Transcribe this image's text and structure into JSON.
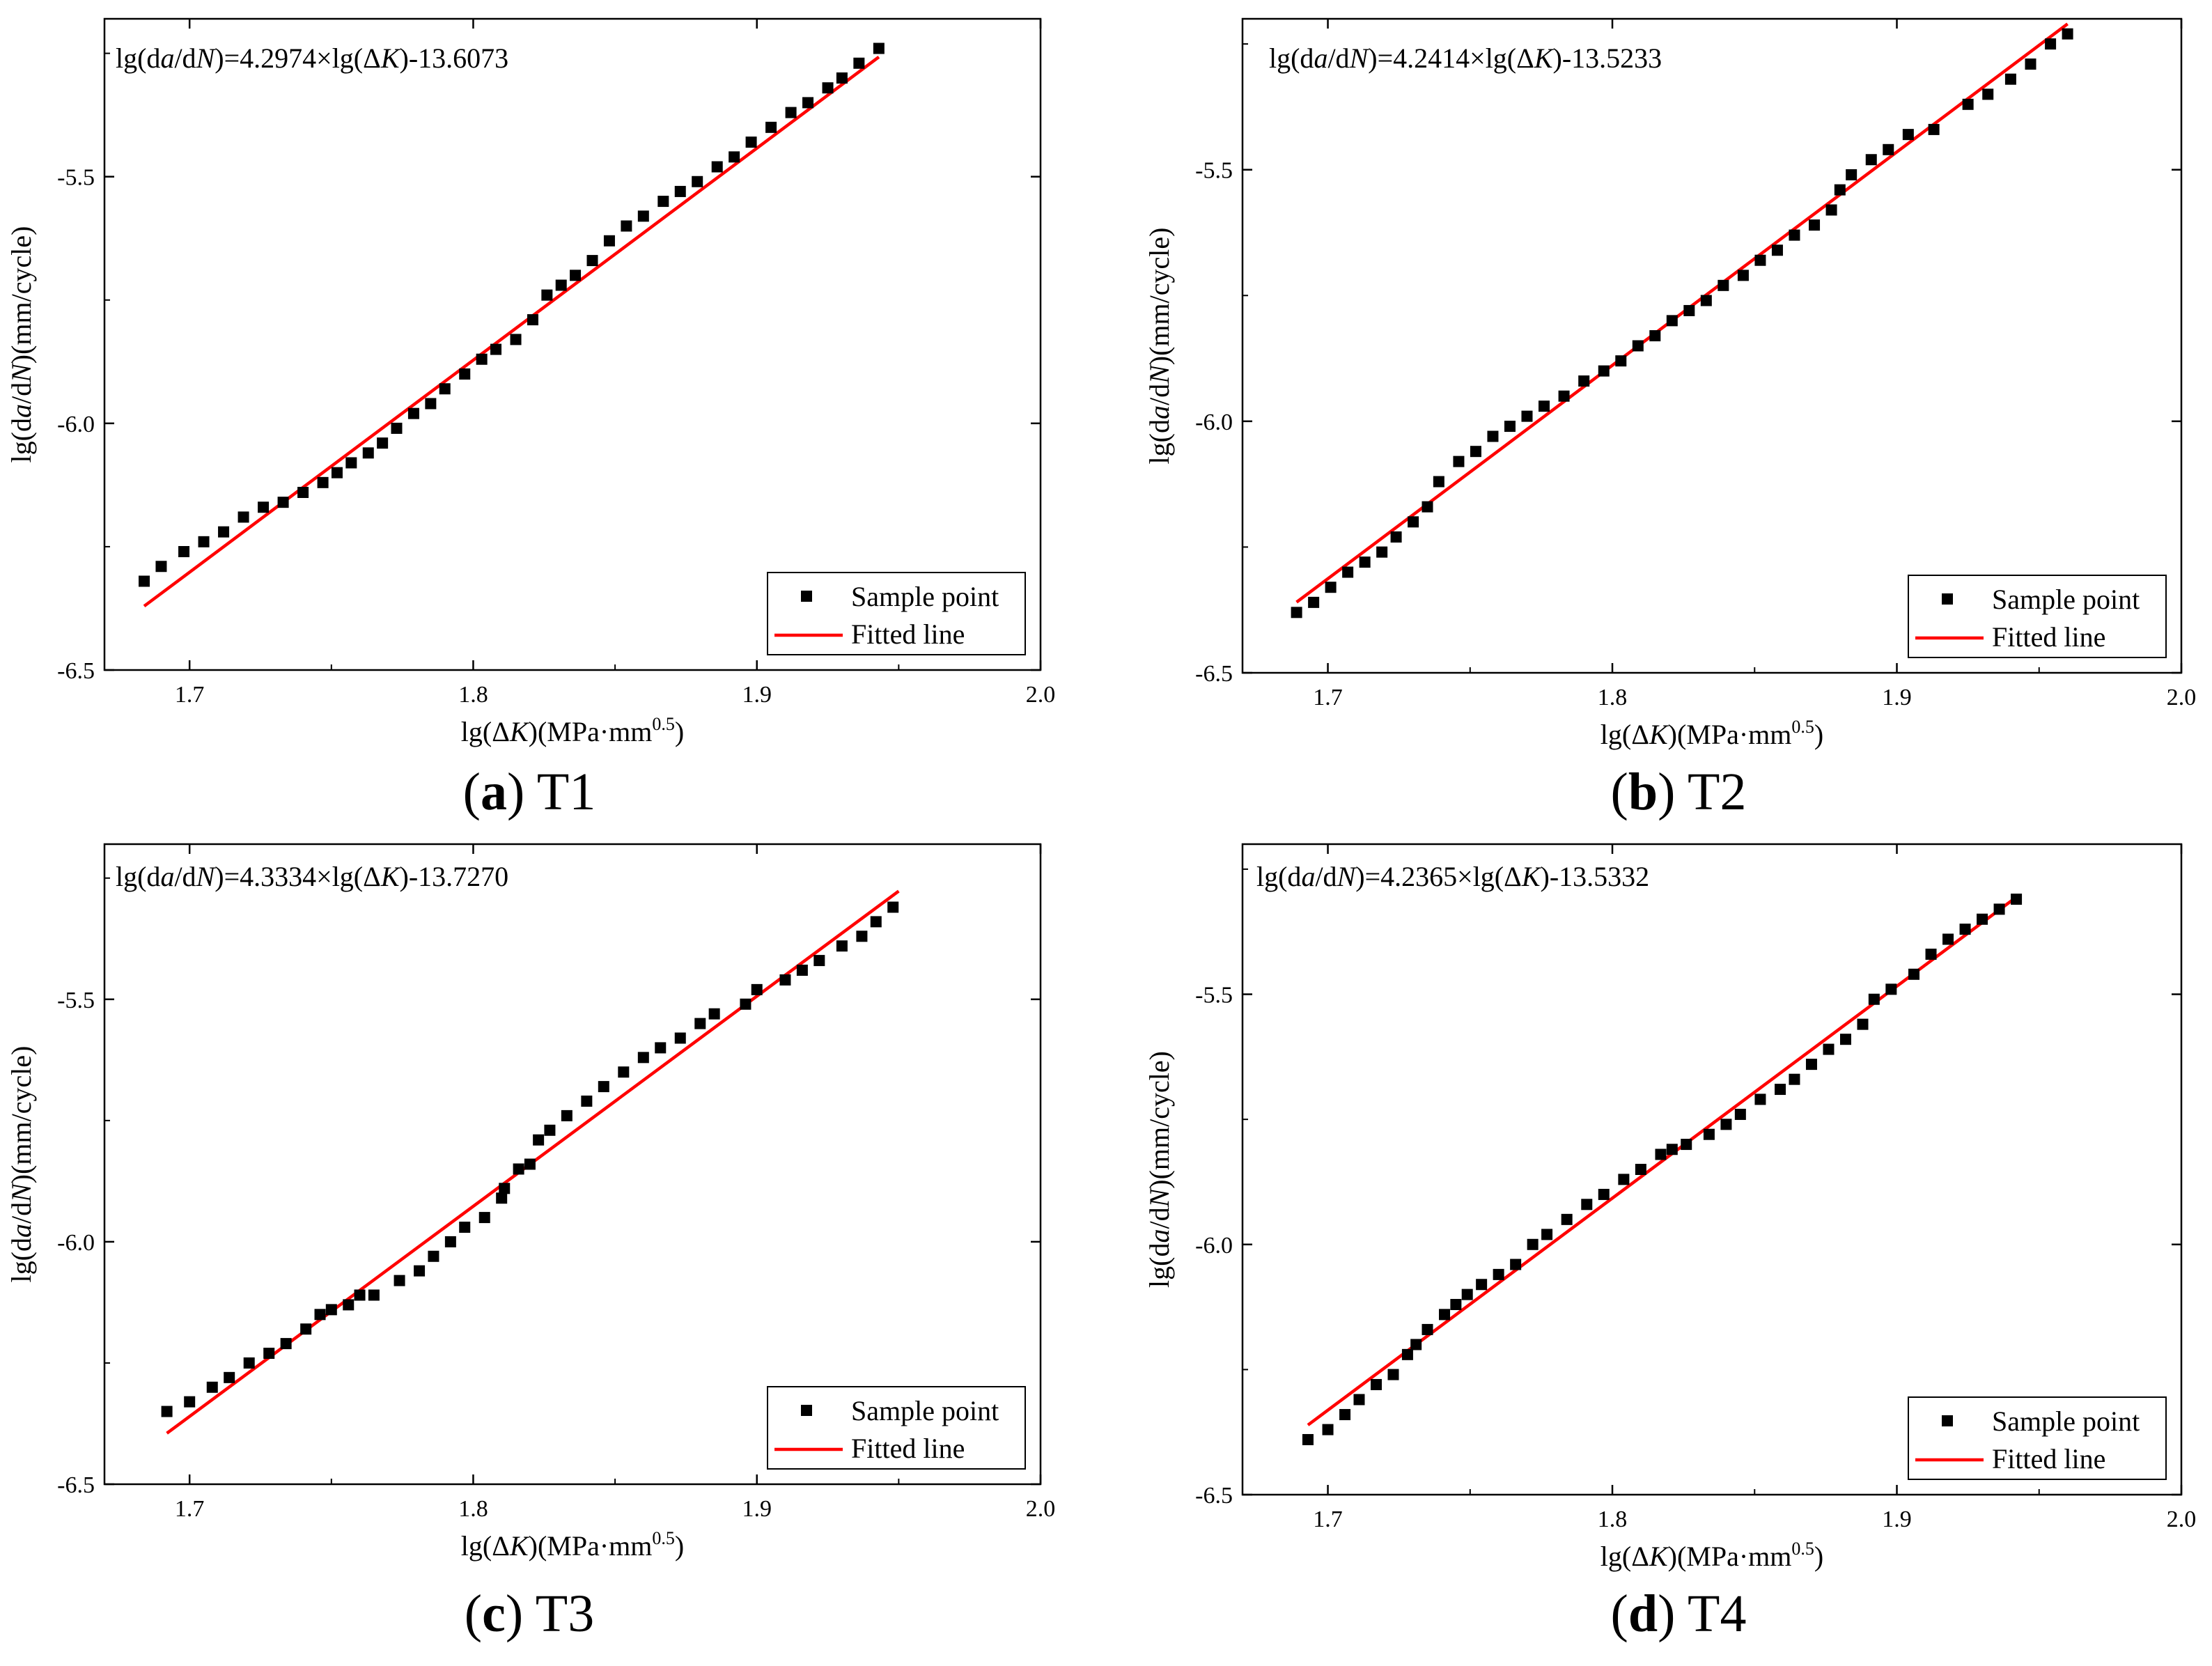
{
  "legend": {
    "sample": "Sample point",
    "fitted": "Fitted line"
  },
  "colors": {
    "fit": "#ff0000",
    "marker": "#000000",
    "axis": "#000000"
  },
  "chart_data": [
    {
      "type": "scatter",
      "caption": {
        "letter": "(a)",
        "name": "T1"
      },
      "equation": {
        "lead": "lg(d",
        "a": "a",
        "mid": "/d",
        "n": "N",
        "tail": ")=4.2974×lg(Δ",
        "k": "K",
        "end": ")-13.6073"
      },
      "xlabel": {
        "pre": "lg(Δ",
        "k": "K",
        "unit": ")(MPa·mm",
        "sup": "0.5",
        "close": ")"
      },
      "ylabel": {
        "pre": "lg(d",
        "a": "a",
        "mid": "/d",
        "n": "N",
        "unit": ")(mm/cycle)"
      },
      "xlim": [
        1.67,
        2.0
      ],
      "ylim": [
        -6.5,
        -5.18
      ],
      "xticks": [
        "1.7",
        "1.8",
        "1.9",
        "2.0"
      ],
      "xtick_values": [
        1.7,
        1.8,
        1.9,
        2.0
      ],
      "yticks": [
        "-5.5",
        "-6.0",
        "-6.5"
      ],
      "ytick_values": [
        -5.5,
        -6.0,
        -6.5
      ],
      "fit": {
        "slope": 4.2974,
        "intercept": -13.6073,
        "x_start": 1.684,
        "x_end": 1.943
      },
      "x": [
        1.684,
        1.69,
        1.698,
        1.705,
        1.712,
        1.719,
        1.726,
        1.733,
        1.74,
        1.747,
        1.752,
        1.757,
        1.763,
        1.768,
        1.773,
        1.779,
        1.785,
        1.79,
        1.797,
        1.803,
        1.808,
        1.815,
        1.821,
        1.826,
        1.831,
        1.836,
        1.842,
        1.848,
        1.854,
        1.86,
        1.867,
        1.873,
        1.879,
        1.886,
        1.892,
        1.898,
        1.905,
        1.912,
        1.918,
        1.925,
        1.93,
        1.936,
        1.943
      ],
      "y": [
        -6.32,
        -6.29,
        -6.26,
        -6.24,
        -6.22,
        -6.19,
        -6.17,
        -6.16,
        -6.14,
        -6.12,
        -6.1,
        -6.08,
        -6.06,
        -6.04,
        -6.01,
        -5.98,
        -5.96,
        -5.93,
        -5.9,
        -5.87,
        -5.85,
        -5.83,
        -5.79,
        -5.74,
        -5.72,
        -5.7,
        -5.67,
        -5.63,
        -5.6,
        -5.58,
        -5.55,
        -5.53,
        -5.51,
        -5.48,
        -5.46,
        -5.43,
        -5.4,
        -5.37,
        -5.35,
        -5.32,
        -5.3,
        -5.27,
        -5.24
      ]
    },
    {
      "type": "scatter",
      "caption": {
        "letter": "(b)",
        "name": "T2"
      },
      "equation": {
        "lead": "lg(d",
        "a": "a",
        "mid": "/d",
        "n": "N",
        "tail": ")=4.2414×lg(Δ",
        "k": "K",
        "end": ")-13.5233"
      },
      "xlabel": {
        "pre": "lg(Δ",
        "k": "K",
        "unit": ")(MPa·mm",
        "sup": "0.5",
        "close": ")"
      },
      "ylabel": {
        "pre": "lg(d",
        "a": "a",
        "mid": "/d",
        "n": "N",
        "unit": ")(mm/cycle)"
      },
      "xlim": [
        1.67,
        2.0
      ],
      "ylim": [
        -6.5,
        -5.2
      ],
      "xticks": [
        "1.7",
        "1.8",
        "1.9",
        "2.0"
      ],
      "xtick_values": [
        1.7,
        1.8,
        1.9,
        2.0
      ],
      "yticks": [
        "-5.5",
        "-6.0",
        "-6.5"
      ],
      "ytick_values": [
        -5.5,
        -6.0,
        -6.5
      ],
      "fit": {
        "slope": 4.2414,
        "intercept": -13.5233,
        "x_start": 1.689,
        "x_end": 1.96
      },
      "x": [
        1.689,
        1.695,
        1.701,
        1.707,
        1.713,
        1.719,
        1.724,
        1.73,
        1.735,
        1.739,
        1.746,
        1.752,
        1.758,
        1.764,
        1.77,
        1.776,
        1.783,
        1.79,
        1.797,
        1.803,
        1.809,
        1.815,
        1.821,
        1.827,
        1.833,
        1.839,
        1.846,
        1.852,
        1.858,
        1.864,
        1.871,
        1.877,
        1.88,
        1.884,
        1.891,
        1.897,
        1.904,
        1.913,
        1.925,
        1.932,
        1.94,
        1.947,
        1.954,
        1.96
      ],
      "y": [
        -6.38,
        -6.36,
        -6.33,
        -6.3,
        -6.28,
        -6.26,
        -6.23,
        -6.2,
        -6.17,
        -6.12,
        -6.08,
        -6.06,
        -6.03,
        -6.01,
        -5.99,
        -5.97,
        -5.95,
        -5.92,
        -5.9,
        -5.88,
        -5.85,
        -5.83,
        -5.8,
        -5.78,
        -5.76,
        -5.73,
        -5.71,
        -5.68,
        -5.66,
        -5.63,
        -5.61,
        -5.58,
        -5.54,
        -5.51,
        -5.48,
        -5.46,
        -5.43,
        -5.42,
        -5.37,
        -5.35,
        -5.32,
        -5.29,
        -5.25,
        -5.23
      ]
    },
    {
      "type": "scatter",
      "caption": {
        "letter": "(c)",
        "name": "T3"
      },
      "equation": {
        "lead": "lg(d",
        "a": "a",
        "mid": "/d",
        "n": "N",
        "tail": ")=4.3334×lg(Δ",
        "k": "K",
        "end": ")-13.7270"
      },
      "xlabel": {
        "pre": "lg(Δ",
        "k": "K",
        "unit": ")(MPa·mm",
        "sup": "0.5",
        "close": ")"
      },
      "ylabel": {
        "pre": "lg(d",
        "a": "a",
        "mid": "/d",
        "n": "N",
        "unit": ")(mm/cycle)"
      },
      "xlim": [
        1.67,
        2.0
      ],
      "ylim": [
        -6.5,
        -5.18
      ],
      "xticks": [
        "1.7",
        "1.8",
        "1.9",
        "2.0"
      ],
      "xtick_values": [
        1.7,
        1.8,
        1.9,
        2.0
      ],
      "yticks": [
        "-5.5",
        "-6.0",
        "-6.5"
      ],
      "ytick_values": [
        -5.5,
        -6.0,
        -6.5
      ],
      "fit": {
        "slope": 4.3334,
        "intercept": -13.727,
        "x_start": 1.692,
        "x_end": 1.95
      },
      "x": [
        1.692,
        1.7,
        1.708,
        1.714,
        1.721,
        1.728,
        1.734,
        1.741,
        1.746,
        1.75,
        1.756,
        1.76,
        1.765,
        1.774,
        1.781,
        1.786,
        1.792,
        1.797,
        1.804,
        1.81,
        1.811,
        1.816,
        1.82,
        1.823,
        1.827,
        1.833,
        1.84,
        1.846,
        1.853,
        1.86,
        1.866,
        1.873,
        1.88,
        1.885,
        1.896,
        1.9,
        1.91,
        1.916,
        1.922,
        1.93,
        1.937,
        1.942,
        1.948
      ],
      "y": [
        -6.35,
        -6.33,
        -6.3,
        -6.28,
        -6.25,
        -6.23,
        -6.21,
        -6.18,
        -6.15,
        -6.14,
        -6.13,
        -6.11,
        -6.11,
        -6.08,
        -6.06,
        -6.03,
        -6.0,
        -5.97,
        -5.95,
        -5.91,
        -5.89,
        -5.85,
        -5.84,
        -5.79,
        -5.77,
        -5.74,
        -5.71,
        -5.68,
        -5.65,
        -5.62,
        -5.6,
        -5.58,
        -5.55,
        -5.53,
        -5.51,
        -5.48,
        -5.46,
        -5.44,
        -5.42,
        -5.39,
        -5.37,
        -5.34,
        -5.31
      ]
    },
    {
      "type": "scatter",
      "caption": {
        "letter": "(d)",
        "name": "T4"
      },
      "equation": {
        "lead": "lg(d",
        "a": "a",
        "mid": "/d",
        "n": "N",
        "tail": ")=4.2365×lg(Δ",
        "k": "K",
        "end": ")-13.5332"
      },
      "xlabel": {
        "pre": "lg(Δ",
        "k": "K",
        "unit": ")(MPa·mm",
        "sup": "0.5",
        "close": ")"
      },
      "ylabel": {
        "pre": "lg(d",
        "a": "a",
        "mid": "/d",
        "n": "N",
        "unit": ")(mm/cycle)"
      },
      "xlim": [
        1.67,
        2.0
      ],
      "ylim": [
        -6.5,
        -5.2
      ],
      "xticks": [
        "1.7",
        "1.8",
        "1.9",
        "2.0"
      ],
      "xtick_values": [
        1.7,
        1.8,
        1.9,
        2.0
      ],
      "yticks": [
        "-5.5",
        "-6.0",
        "-6.5"
      ],
      "ytick_values": [
        -5.5,
        -6.0,
        -6.5
      ],
      "fit": {
        "slope": 4.2365,
        "intercept": -13.5332,
        "x_start": 1.693,
        "x_end": 1.943
      },
      "x": [
        1.693,
        1.7,
        1.706,
        1.711,
        1.717,
        1.723,
        1.728,
        1.731,
        1.735,
        1.741,
        1.745,
        1.749,
        1.754,
        1.76,
        1.766,
        1.772,
        1.777,
        1.784,
        1.791,
        1.797,
        1.804,
        1.81,
        1.817,
        1.821,
        1.826,
        1.834,
        1.84,
        1.845,
        1.852,
        1.859,
        1.864,
        1.87,
        1.876,
        1.882,
        1.888,
        1.892,
        1.898,
        1.906,
        1.912,
        1.918,
        1.924,
        1.93,
        1.936,
        1.942
      ],
      "y": [
        -6.39,
        -6.37,
        -6.34,
        -6.31,
        -6.28,
        -6.26,
        -6.22,
        -6.2,
        -6.17,
        -6.14,
        -6.12,
        -6.1,
        -6.08,
        -6.06,
        -6.04,
        -6.0,
        -5.98,
        -5.95,
        -5.92,
        -5.9,
        -5.87,
        -5.85,
        -5.82,
        -5.81,
        -5.8,
        -5.78,
        -5.76,
        -5.74,
        -5.71,
        -5.69,
        -5.67,
        -5.64,
        -5.61,
        -5.59,
        -5.56,
        -5.51,
        -5.49,
        -5.46,
        -5.42,
        -5.39,
        -5.37,
        -5.35,
        -5.33,
        -5.31
      ]
    }
  ]
}
